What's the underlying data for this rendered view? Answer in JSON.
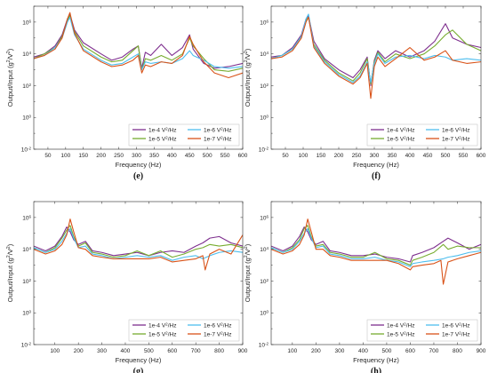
{
  "colors": {
    "1e-4": "#7E2F8E",
    "1e-5": "#77AC30",
    "1e-6": "#4DBEEE",
    "1e-7": "#D95319"
  },
  "legend_entries": [
    {
      "key": "1e-4",
      "label_pre": "1e-4 V",
      "label_sup": "2",
      "label_post": "/Hz"
    },
    {
      "key": "1e-5",
      "label_pre": "1e-5 V",
      "label_sup": "2",
      "label_post": "/Hz"
    },
    {
      "key": "1e-6",
      "label_pre": "1e-6 V",
      "label_sup": "2",
      "label_post": "/Hz"
    },
    {
      "key": "1e-7",
      "label_pre": "1e-7 V",
      "label_sup": "2",
      "label_post": "/Hz"
    }
  ],
  "chart_data": [
    {
      "panel": "(e)",
      "type": "line",
      "xlabel": "Frequency (Hz)",
      "ylabel_pre": "Output/Input (g",
      "ylabel_sup1": "2",
      "ylabel_mid": "/V",
      "ylabel_sup2": "2",
      "ylabel_post": ")",
      "xlim": [
        10,
        600
      ],
      "xticks": [
        50,
        100,
        150,
        200,
        250,
        300,
        350,
        400,
        450,
        500,
        550,
        600
      ],
      "yscale": "log",
      "ylim_exp": [
        -2,
        7
      ],
      "yticks_exp": [
        -2,
        0,
        2,
        4,
        6
      ],
      "legend_position": "bottom-right",
      "series": [
        {
          "key": "1e-4",
          "x": [
            10,
            40,
            70,
            90,
            105,
            112,
            125,
            150,
            200,
            230,
            260,
            290,
            305,
            315,
            325,
            340,
            370,
            400,
            430,
            450,
            460,
            490,
            520,
            560,
            600
          ],
          "y_exp": [
            3.8,
            4.0,
            4.5,
            5.2,
            6.2,
            6.5,
            5.5,
            4.7,
            4.0,
            3.6,
            3.8,
            4.3,
            4.5,
            3.1,
            4.1,
            3.9,
            4.6,
            3.9,
            4.4,
            5.2,
            4.3,
            3.4,
            3.1,
            3.2,
            3.4
          ]
        },
        {
          "key": "1e-5",
          "x": [
            10,
            40,
            70,
            90,
            105,
            112,
            125,
            150,
            200,
            230,
            260,
            290,
            305,
            315,
            325,
            340,
            370,
            400,
            430,
            450,
            460,
            490,
            520,
            560,
            600
          ],
          "y_exp": [
            3.7,
            4.0,
            4.4,
            5.1,
            6.1,
            6.4,
            5.4,
            4.5,
            3.8,
            3.5,
            3.6,
            4.2,
            4.5,
            3.0,
            3.7,
            3.6,
            3.9,
            3.6,
            4.0,
            5.0,
            4.5,
            3.7,
            3.0,
            2.9,
            3.1
          ]
        },
        {
          "key": "1e-6",
          "x": [
            10,
            40,
            70,
            90,
            105,
            112,
            125,
            150,
            200,
            230,
            260,
            290,
            305,
            315,
            325,
            340,
            370,
            400,
            430,
            450,
            460,
            490,
            520,
            560,
            600
          ],
          "y_exp": [
            3.7,
            3.9,
            4.4,
            5.0,
            6.0,
            6.3,
            5.2,
            4.3,
            3.6,
            3.3,
            3.4,
            3.8,
            4.0,
            3.0,
            3.5,
            3.4,
            3.5,
            3.4,
            3.7,
            4.2,
            3.9,
            3.6,
            3.2,
            3.1,
            3.2
          ]
        },
        {
          "key": "1e-7",
          "x": [
            10,
            40,
            70,
            90,
            105,
            112,
            125,
            150,
            200,
            230,
            260,
            290,
            305,
            315,
            325,
            340,
            370,
            400,
            430,
            450,
            460,
            490,
            520,
            560,
            600
          ],
          "y_exp": [
            3.7,
            3.9,
            4.3,
            5.0,
            6.2,
            6.6,
            5.3,
            4.2,
            3.5,
            3.2,
            3.3,
            3.6,
            3.9,
            2.8,
            3.3,
            3.2,
            3.5,
            3.4,
            3.9,
            5.1,
            4.6,
            3.5,
            2.8,
            2.5,
            2.8
          ]
        }
      ]
    },
    {
      "panel": "(f)",
      "type": "line",
      "xlabel": "Frequency (Hz)",
      "ylabel_pre": "Output/Input (g",
      "ylabel_sup1": "2",
      "ylabel_mid": "/V",
      "ylabel_sup2": "2",
      "ylabel_post": ")",
      "xlim": [
        10,
        600
      ],
      "xticks": [
        50,
        100,
        150,
        200,
        250,
        300,
        350,
        400,
        450,
        500,
        550,
        600
      ],
      "yscale": "log",
      "ylim_exp": [
        -2,
        7
      ],
      "yticks_exp": [
        -2,
        0,
        2,
        4,
        6
      ],
      "legend_position": "bottom-right",
      "series": [
        {
          "key": "1e-4",
          "x": [
            10,
            40,
            70,
            95,
            108,
            115,
            130,
            160,
            200,
            240,
            260,
            280,
            290,
            300,
            310,
            330,
            360,
            400,
            440,
            470,
            500,
            520,
            560,
            600
          ],
          "y_exp": [
            3.8,
            3.9,
            4.4,
            5.2,
            6.2,
            6.4,
            4.8,
            3.7,
            3.0,
            2.5,
            3.0,
            3.8,
            2.0,
            3.6,
            4.2,
            3.7,
            4.2,
            3.8,
            4.2,
            4.8,
            5.9,
            5.0,
            4.6,
            4.4
          ]
        },
        {
          "key": "1e-5",
          "x": [
            10,
            40,
            70,
            95,
            108,
            115,
            130,
            160,
            200,
            240,
            260,
            280,
            290,
            300,
            310,
            330,
            360,
            400,
            440,
            470,
            500,
            520,
            560,
            600
          ],
          "y_exp": [
            3.7,
            3.9,
            4.3,
            5.1,
            6.1,
            6.3,
            4.6,
            3.6,
            2.8,
            2.3,
            2.8,
            3.7,
            2.1,
            3.5,
            4.1,
            3.5,
            4.0,
            3.7,
            4.0,
            4.5,
            5.2,
            5.5,
            4.6,
            4.2
          ]
        },
        {
          "key": "1e-6",
          "x": [
            10,
            40,
            70,
            95,
            108,
            115,
            130,
            160,
            200,
            240,
            260,
            280,
            290,
            300,
            310,
            330,
            360,
            400,
            440,
            470,
            500,
            520,
            560,
            600
          ],
          "y_exp": [
            3.7,
            3.9,
            4.3,
            5.1,
            6.2,
            6.5,
            4.5,
            3.5,
            2.7,
            2.2,
            2.6,
            3.5,
            2.2,
            3.4,
            4.0,
            3.4,
            3.8,
            3.9,
            3.7,
            3.9,
            3.8,
            3.6,
            3.7,
            3.6
          ]
        },
        {
          "key": "1e-7",
          "x": [
            10,
            40,
            70,
            95,
            108,
            115,
            130,
            160,
            200,
            240,
            260,
            280,
            290,
            300,
            310,
            330,
            360,
            400,
            440,
            470,
            500,
            520,
            560,
            600
          ],
          "y_exp": [
            3.7,
            3.8,
            4.2,
            5.0,
            6.0,
            6.3,
            4.4,
            3.4,
            2.6,
            2.1,
            2.5,
            3.4,
            1.2,
            3.2,
            3.8,
            3.2,
            3.7,
            4.4,
            3.6,
            3.8,
            4.2,
            3.6,
            3.4,
            3.5
          ]
        }
      ]
    },
    {
      "panel": "(g)",
      "type": "line",
      "xlabel": "Frequency (Hz)",
      "ylabel_pre": "Output/Input (g",
      "ylabel_sup1": "2",
      "ylabel_mid": "/V",
      "ylabel_sup2": "2",
      "ylabel_post": ")",
      "xlim": [
        10,
        900
      ],
      "xticks": [
        100,
        200,
        300,
        400,
        500,
        600,
        700,
        800,
        900
      ],
      "yscale": "log",
      "ylim_exp": [
        -2,
        7
      ],
      "yticks_exp": [
        -2,
        0,
        2,
        4,
        6
      ],
      "legend_position": "bottom-right",
      "series": [
        {
          "key": "1e-4",
          "x": [
            10,
            60,
            100,
            130,
            150,
            165,
            180,
            200,
            230,
            260,
            300,
            350,
            400,
            450,
            500,
            550,
            600,
            650,
            700,
            730,
            760,
            800,
            850,
            900
          ],
          "y_exp": [
            4.2,
            3.9,
            4.2,
            4.8,
            5.4,
            5.1,
            4.6,
            4.3,
            4.5,
            3.9,
            3.8,
            3.6,
            3.7,
            3.8,
            3.6,
            3.8,
            3.9,
            3.8,
            4.2,
            4.4,
            4.7,
            4.8,
            4.4,
            4.2
          ]
        },
        {
          "key": "1e-5",
          "x": [
            10,
            60,
            100,
            130,
            150,
            165,
            180,
            200,
            230,
            260,
            300,
            350,
            400,
            450,
            500,
            550,
            600,
            650,
            700,
            730,
            760,
            800,
            850,
            900
          ],
          "y_exp": [
            4.1,
            3.8,
            4.1,
            4.7,
            5.2,
            5.5,
            4.8,
            4.2,
            4.4,
            3.8,
            3.7,
            3.5,
            3.6,
            3.9,
            3.6,
            3.9,
            3.5,
            3.7,
            4.0,
            4.1,
            4.3,
            4.2,
            4.3,
            4.1
          ]
        },
        {
          "key": "1e-6",
          "x": [
            10,
            60,
            100,
            130,
            150,
            165,
            180,
            200,
            230,
            260,
            300,
            350,
            400,
            450,
            500,
            550,
            600,
            650,
            700,
            730,
            760,
            800,
            850,
            900
          ],
          "y_exp": [
            4.1,
            3.8,
            4.0,
            4.5,
            5.0,
            5.3,
            4.7,
            4.1,
            4.2,
            3.7,
            3.6,
            3.4,
            3.5,
            3.6,
            3.5,
            3.6,
            3.3,
            3.5,
            3.6,
            3.4,
            3.6,
            3.8,
            3.9,
            3.8
          ]
        },
        {
          "key": "1e-7",
          "x": [
            10,
            60,
            100,
            130,
            150,
            165,
            180,
            200,
            230,
            260,
            300,
            350,
            400,
            450,
            500,
            550,
            600,
            650,
            700,
            730,
            740,
            760,
            800,
            850,
            900
          ],
          "y_exp": [
            4.0,
            3.7,
            3.9,
            4.3,
            4.9,
            5.9,
            5.1,
            4.1,
            4.0,
            3.6,
            3.5,
            3.4,
            3.4,
            3.4,
            3.4,
            3.5,
            3.2,
            3.3,
            3.4,
            3.6,
            2.7,
            3.7,
            4.0,
            3.7,
            4.9
          ]
        }
      ]
    },
    {
      "panel": "(h)",
      "type": "line",
      "xlabel": "Frequency (Hz)",
      "ylabel_pre": "Output/Input (g",
      "ylabel_sup1": "2",
      "ylabel_mid": "/V",
      "ylabel_sup2": "2",
      "ylabel_post": ")",
      "xlim": [
        10,
        900
      ],
      "xticks": [
        100,
        200,
        300,
        400,
        500,
        600,
        700,
        800,
        900
      ],
      "yscale": "log",
      "ylim_exp": [
        -2,
        7
      ],
      "yticks_exp": [
        -2,
        0,
        2,
        4,
        6
      ],
      "legend_position": "bottom-right",
      "series": [
        {
          "key": "1e-4",
          "x": [
            10,
            60,
            100,
            130,
            150,
            165,
            180,
            200,
            230,
            260,
            300,
            350,
            400,
            450,
            500,
            550,
            600,
            610,
            650,
            700,
            740,
            760,
            800,
            850,
            900
          ],
          "y_exp": [
            4.2,
            3.9,
            4.2,
            4.8,
            5.4,
            5.1,
            4.6,
            4.3,
            4.5,
            3.9,
            3.8,
            3.6,
            3.6,
            3.7,
            3.5,
            3.4,
            3.2,
            3.6,
            3.8,
            4.1,
            4.5,
            4.7,
            4.4,
            4.0,
            4.3
          ]
        },
        {
          "key": "1e-5",
          "x": [
            10,
            60,
            100,
            130,
            150,
            165,
            180,
            200,
            230,
            260,
            300,
            350,
            400,
            450,
            500,
            550,
            600,
            610,
            650,
            700,
            740,
            760,
            800,
            850,
            900
          ],
          "y_exp": [
            4.1,
            3.8,
            4.1,
            4.6,
            5.3,
            5.5,
            4.8,
            4.2,
            4.3,
            3.8,
            3.7,
            3.5,
            3.5,
            3.8,
            3.4,
            3.3,
            3.0,
            3.3,
            3.5,
            3.8,
            4.3,
            4.0,
            4.2,
            4.1,
            4.1
          ]
        },
        {
          "key": "1e-6",
          "x": [
            10,
            60,
            100,
            130,
            150,
            165,
            180,
            200,
            230,
            260,
            300,
            350,
            400,
            450,
            500,
            550,
            600,
            610,
            650,
            700,
            740,
            760,
            800,
            850,
            900
          ],
          "y_exp": [
            4.1,
            3.8,
            4.0,
            4.5,
            5.0,
            5.3,
            4.7,
            4.1,
            4.2,
            3.7,
            3.6,
            3.4,
            3.4,
            3.5,
            3.3,
            3.2,
            2.9,
            3.1,
            3.2,
            3.3,
            3.4,
            3.5,
            3.6,
            3.8,
            3.9
          ]
        },
        {
          "key": "1e-7",
          "x": [
            10,
            60,
            100,
            130,
            150,
            165,
            180,
            200,
            230,
            260,
            300,
            350,
            400,
            450,
            500,
            550,
            600,
            610,
            650,
            700,
            730,
            740,
            760,
            800,
            850,
            900
          ],
          "y_exp": [
            4.0,
            3.7,
            3.9,
            4.3,
            4.9,
            5.9,
            5.1,
            4.0,
            4.0,
            3.6,
            3.5,
            3.3,
            3.3,
            3.3,
            3.3,
            3.1,
            2.7,
            2.9,
            3.0,
            3.1,
            3.3,
            1.8,
            3.2,
            3.4,
            3.6,
            3.8
          ]
        }
      ]
    }
  ]
}
